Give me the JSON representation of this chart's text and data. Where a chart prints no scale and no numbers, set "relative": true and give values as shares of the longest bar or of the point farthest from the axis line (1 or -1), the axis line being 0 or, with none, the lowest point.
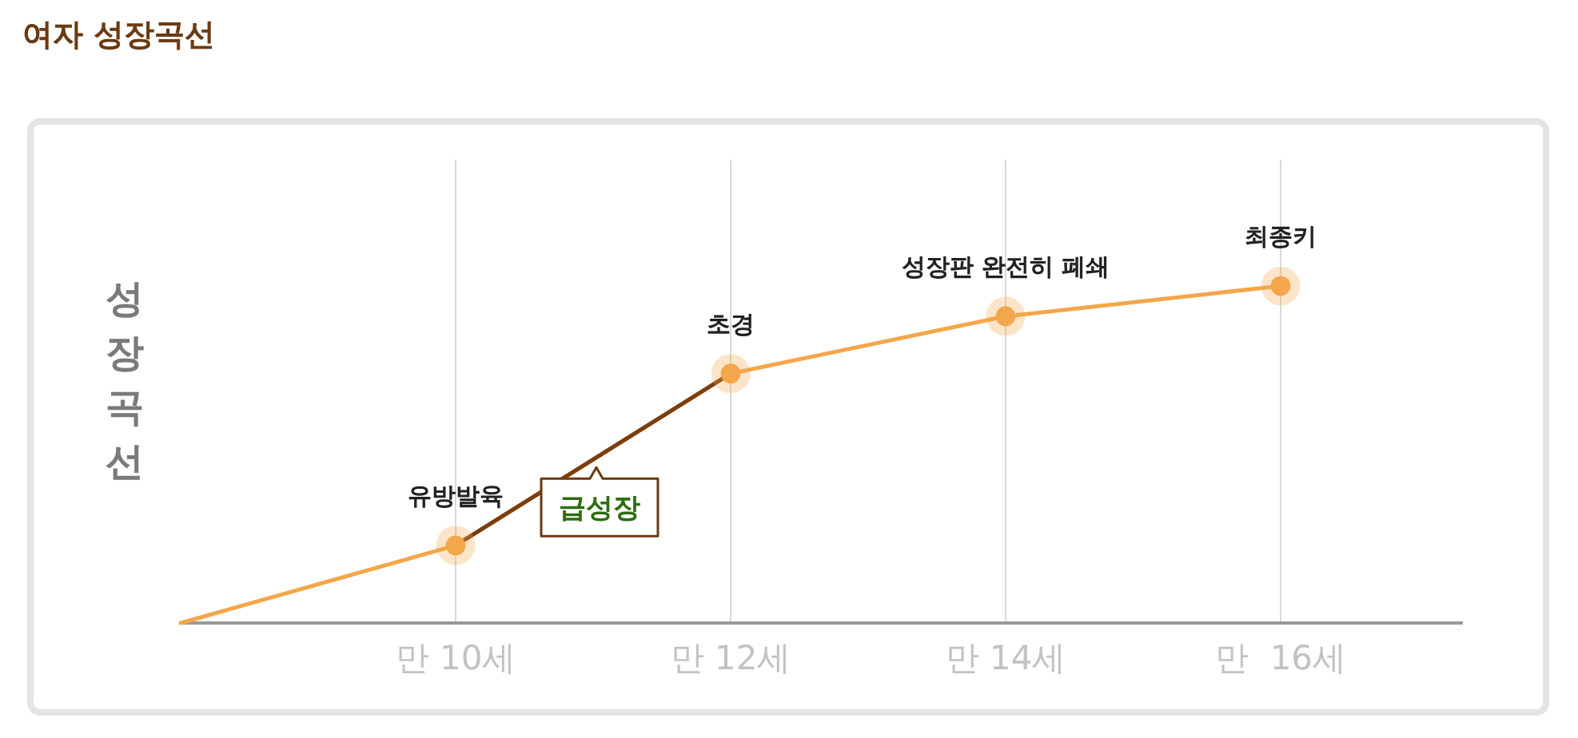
{
  "chart_data": {
    "type": "line",
    "title": "여자 성장곡선",
    "ylabel": "성장곡선",
    "relative": true,
    "categories": [
      null,
      "만 10세",
      "만 12세",
      "만 14세",
      "만  16세"
    ],
    "grid": "x",
    "series": [
      {
        "color": "#f4a64a",
        "values": [
          0,
          0.23,
          0.74,
          0.91,
          1
        ],
        "marker": "none"
      },
      {
        "color": "#7a3e10",
        "values": [
          null,
          0.23,
          0.74,
          null,
          null
        ],
        "marker": "none"
      },
      {
        "type": "scatter",
        "color": "#f4a64a",
        "values": [
          null,
          0.23,
          0.74,
          0.91,
          1
        ],
        "marker": "circle"
      }
    ],
    "annotations": [
      {
        "text": "유방발육",
        "x": "만 10세",
        "y": 0.23
      },
      {
        "text": "초경",
        "x": "만 12세",
        "y": 0.74
      },
      {
        "text": "성장판 완전히 폐쇄",
        "x": "만 14세",
        "y": 0.91
      },
      {
        "text": "최종키",
        "x": "만  16세",
        "y": 1
      },
      "급성장"
    ]
  }
}
